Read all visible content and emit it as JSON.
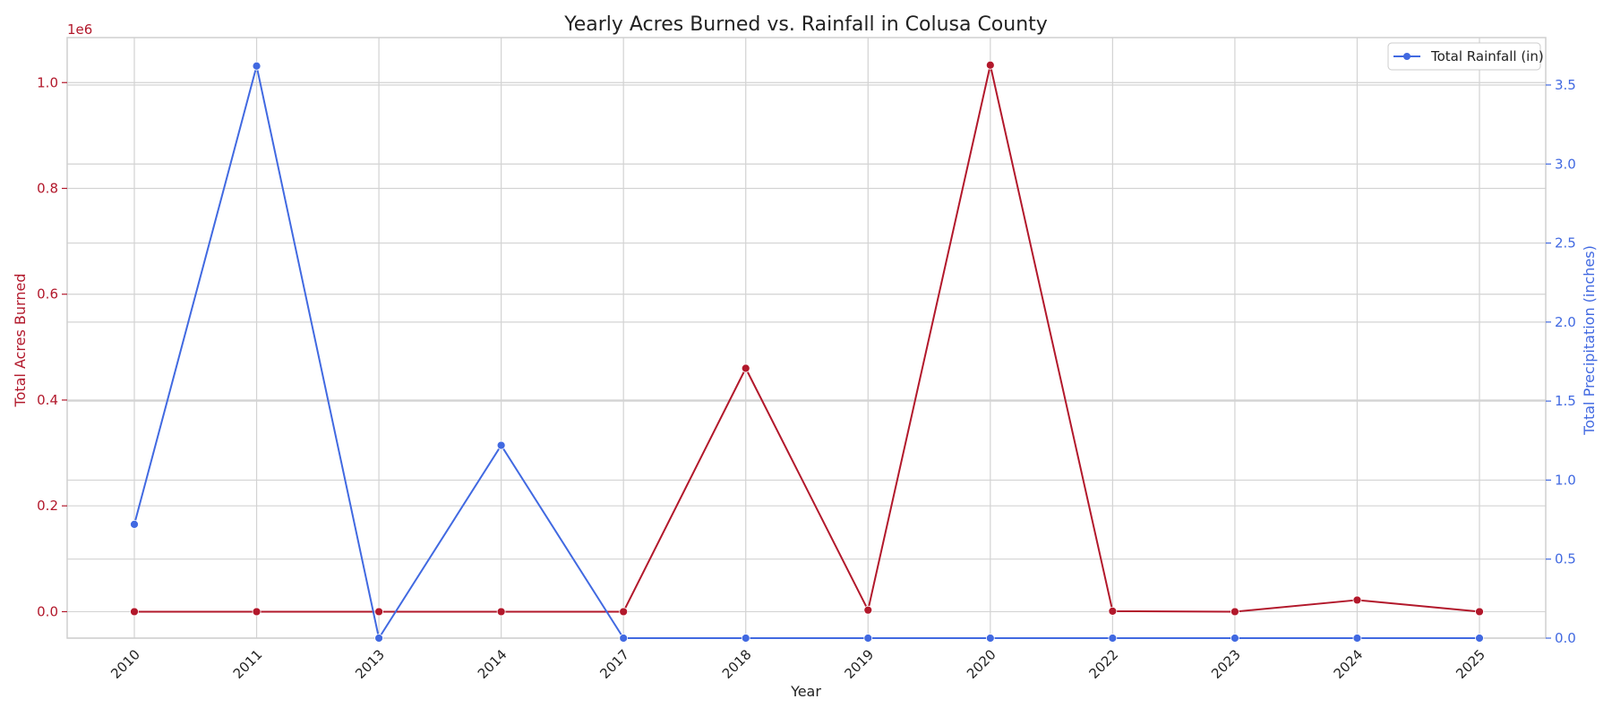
{
  "chart_data": {
    "type": "line",
    "title": "Yearly Acres Burned vs. Rainfall in Colusa County",
    "xlabel": "Year",
    "categories": [
      "2010",
      "2011",
      "2013",
      "2014",
      "2017",
      "2018",
      "2019",
      "2020",
      "2022",
      "2023",
      "2024",
      "2025"
    ],
    "y_left": {
      "label": "Total Acres Burned",
      "offset_label": "1e6",
      "color": "#b2182b",
      "range": [
        -0.05,
        1.085
      ],
      "ticks": [
        0.0,
        0.2,
        0.4,
        0.6,
        0.8,
        1.0
      ],
      "tick_labels": [
        "0.0",
        "0.2",
        "0.4",
        "0.6",
        "0.8",
        "1.0"
      ]
    },
    "y_right": {
      "label": "Total Precipitation (inches)",
      "color": "#4169e1",
      "range": [
        0.0,
        3.8
      ],
      "ticks": [
        0.0,
        0.5,
        1.0,
        1.5,
        2.0,
        2.5,
        3.0,
        3.5
      ],
      "tick_labels": [
        "0.0",
        "0.5",
        "1.0",
        "1.5",
        "2.0",
        "2.5",
        "3.0",
        "3.5"
      ]
    },
    "series": [
      {
        "axis": "left",
        "color": "#b2182b",
        "values": [
          0.0,
          0.0,
          0.0,
          0.0,
          0.0,
          0.46,
          0.003,
          1.033,
          0.001,
          0.0,
          0.022,
          0.0
        ]
      },
      {
        "name": "Total Rainfall (in)",
        "axis": "right",
        "color": "#4169e1",
        "values": [
          0.72,
          3.62,
          0.0,
          1.22,
          0.0,
          0.0,
          0.0,
          0.0,
          0.0,
          0.0,
          0.0,
          0.0
        ]
      }
    ],
    "legend": {
      "position": "top-right",
      "entries": [
        "Total Rainfall (in)"
      ]
    },
    "grid": true
  }
}
